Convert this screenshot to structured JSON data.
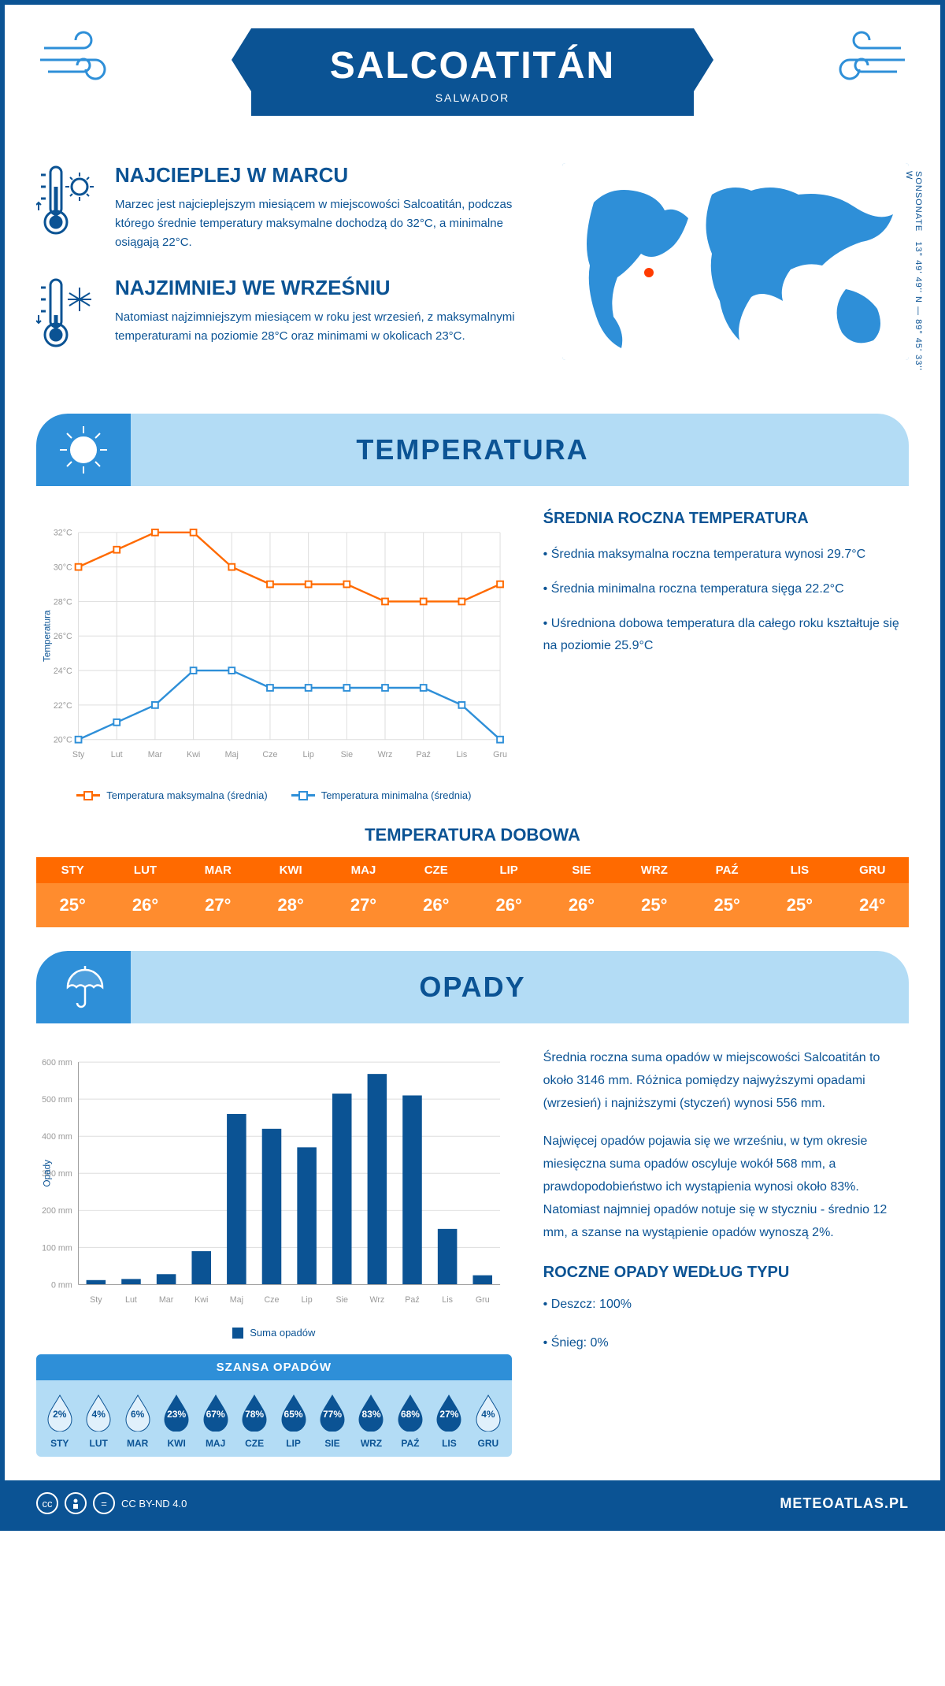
{
  "header": {
    "title": "SALCOATITÁN",
    "country": "SALWADOR"
  },
  "coords": {
    "lat": "13° 49' 49'' N",
    "lon": "89° 45' 33'' W",
    "subdiv": "SONSONATE"
  },
  "intro": {
    "warm": {
      "title": "NAJCIEPLEJ W MARCU",
      "text": "Marzec jest najcieplejszym miesiącem w miejscowości Salcoatitán, podczas którego średnie temperatury maksymalne dochodzą do 32°C, a minimalne osiągają 22°C."
    },
    "cold": {
      "title": "NAJZIMNIEJ WE WRZEŚNIU",
      "text": "Natomiast najzimniejszym miesiącem w roku jest wrzesień, z maksymalnymi temperaturami na poziomie 28°C oraz minimami w okolicach 23°C."
    }
  },
  "sections": {
    "temp": "TEMPERATURA",
    "precip": "OPADY"
  },
  "months_short": [
    "Sty",
    "Lut",
    "Mar",
    "Kwi",
    "Maj",
    "Cze",
    "Lip",
    "Sie",
    "Wrz",
    "Paź",
    "Lis",
    "Gru"
  ],
  "months_upper": [
    "STY",
    "LUT",
    "MAR",
    "KWI",
    "MAJ",
    "CZE",
    "LIP",
    "SIE",
    "WRZ",
    "PAŹ",
    "LIS",
    "GRU"
  ],
  "temp_chart": {
    "max_series": [
      30,
      31,
      32,
      32,
      30,
      29,
      29,
      29,
      28,
      28,
      28,
      29
    ],
    "min_series": [
      20,
      21,
      22,
      24,
      24,
      23,
      23,
      23,
      23,
      23,
      22,
      20
    ],
    "color_max": "#ff6a00",
    "color_min": "#2e8fd8",
    "ymin": 20,
    "ymax": 32,
    "ytick_step": 2,
    "ylabel": "Temperatura",
    "legend_max": "Temperatura maksymalna (średnia)",
    "legend_min": "Temperatura minimalna (średnia)"
  },
  "temp_info": {
    "title": "ŚREDNIA ROCZNA TEMPERATURA",
    "p1": "• Średnia maksymalna roczna temperatura wynosi 29.7°C",
    "p2": "• Średnia minimalna roczna temperatura sięga 22.2°C",
    "p3": "• Uśredniona dobowa temperatura dla całego roku kształtuje się na poziomie 25.9°C"
  },
  "daily_temp": {
    "title": "TEMPERATURA DOBOWA",
    "values": [
      "25°",
      "26°",
      "27°",
      "28°",
      "27°",
      "26°",
      "26°",
      "26°",
      "25°",
      "25°",
      "25°",
      "24°"
    ]
  },
  "precip_chart": {
    "values": [
      12,
      15,
      28,
      90,
      460,
      420,
      370,
      515,
      568,
      510,
      150,
      25
    ],
    "ymax": 600,
    "ytick_step": 100,
    "ylabel": "Opady",
    "legend": "Suma opadów",
    "bar_color": "#0b5394"
  },
  "precip_text": {
    "p1": "Średnia roczna suma opadów w miejscowości Salcoatitán to około 3146 mm. Różnica pomiędzy najwyższymi opadami (wrzesień) i najniższymi (styczeń) wynosi 556 mm.",
    "p2": "Najwięcej opadów pojawia się we wrześniu, w tym okresie miesięczna suma opadów oscyluje wokół 568 mm, a prawdopodobieństwo ich wystąpienia wynosi około 83%. Natomiast najmniej opadów notuje się w styczniu - średnio 12 mm, a szanse na wystąpienie opadów wynoszą 2%.",
    "types_title": "ROCZNE OPADY WEDŁUG TYPU",
    "type1": "• Deszcz: 100%",
    "type2": "• Śnieg: 0%"
  },
  "chance": {
    "title": "SZANSA OPADÓW",
    "values": [
      2,
      4,
      6,
      23,
      67,
      78,
      65,
      77,
      83,
      68,
      27,
      4
    ],
    "color_low": "#e0f0fb",
    "color_high": "#0b5394",
    "threshold": 20
  },
  "footer": {
    "license": "CC BY-ND 4.0",
    "brand": "METEOATLAS.PL"
  }
}
